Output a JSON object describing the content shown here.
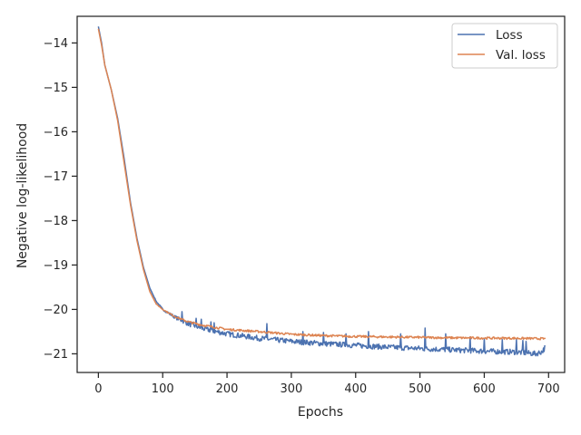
{
  "chart_data": {
    "type": "line",
    "xlabel": "Epochs",
    "ylabel": "Negative log-likelihood",
    "xlim": [
      -33,
      725
    ],
    "ylim": [
      -21.42,
      -13.4
    ],
    "x_ticks": [
      0,
      100,
      200,
      300,
      400,
      500,
      600,
      700
    ],
    "y_ticks": [
      -21,
      -20,
      -19,
      -18,
      -17,
      -16,
      -15,
      -14
    ],
    "x_tick_labels": [
      "0",
      "100",
      "200",
      "300",
      "400",
      "500",
      "600",
      "700"
    ],
    "y_tick_labels": [
      "−21",
      "−20",
      "−19",
      "−18",
      "−17",
      "−16",
      "−15",
      "−14"
    ],
    "grid": false,
    "legend_position": "top-right",
    "n_epochs": 695,
    "series": [
      {
        "name": "Loss",
        "color": "#4c72b0",
        "x": [
          0,
          5,
          10,
          20,
          30,
          40,
          50,
          60,
          70,
          80,
          90,
          100,
          120,
          140,
          160,
          180,
          200,
          250,
          300,
          350,
          400,
          450,
          500,
          550,
          600,
          650,
          680,
          690,
          695
        ],
        "y": [
          -13.63,
          -14.0,
          -14.5,
          -15.05,
          -15.7,
          -16.6,
          -17.6,
          -18.4,
          -19.05,
          -19.52,
          -19.82,
          -20.0,
          -20.18,
          -20.32,
          -20.42,
          -20.49,
          -20.55,
          -20.65,
          -20.72,
          -20.77,
          -20.81,
          -20.85,
          -20.88,
          -20.91,
          -20.94,
          -20.96,
          -21.0,
          -20.95,
          -20.85
        ],
        "noise_amplitude": 0.06,
        "spikes": [
          [
            130,
            -20.05
          ],
          [
            152,
            -20.2
          ],
          [
            160,
            -20.22
          ],
          [
            175,
            -20.28
          ],
          [
            180,
            -20.3
          ],
          [
            262,
            -20.32
          ],
          [
            318,
            -20.5
          ],
          [
            350,
            -20.52
          ],
          [
            385,
            -20.55
          ],
          [
            420,
            -20.5
          ],
          [
            470,
            -20.55
          ],
          [
            508,
            -20.42
          ],
          [
            540,
            -20.55
          ],
          [
            578,
            -20.62
          ],
          [
            600,
            -20.65
          ],
          [
            628,
            -20.68
          ],
          [
            650,
            -20.68
          ],
          [
            660,
            -20.7
          ],
          [
            665,
            -20.72
          ]
        ]
      },
      {
        "name": "Val. loss",
        "color": "#dd8452",
        "x": [
          0,
          5,
          10,
          20,
          30,
          40,
          50,
          60,
          70,
          80,
          90,
          100,
          120,
          140,
          160,
          180,
          200,
          250,
          300,
          350,
          400,
          450,
          500,
          550,
          600,
          650,
          695
        ],
        "y": [
          -13.68,
          -14.05,
          -14.5,
          -15.05,
          -15.75,
          -16.7,
          -17.65,
          -18.45,
          -19.1,
          -19.6,
          -19.88,
          -20.0,
          -20.17,
          -20.28,
          -20.35,
          -20.4,
          -20.45,
          -20.5,
          -20.56,
          -20.59,
          -20.61,
          -20.62,
          -20.63,
          -20.64,
          -20.645,
          -20.65,
          -20.66
        ],
        "noise_amplitude": 0.025
      }
    ]
  }
}
